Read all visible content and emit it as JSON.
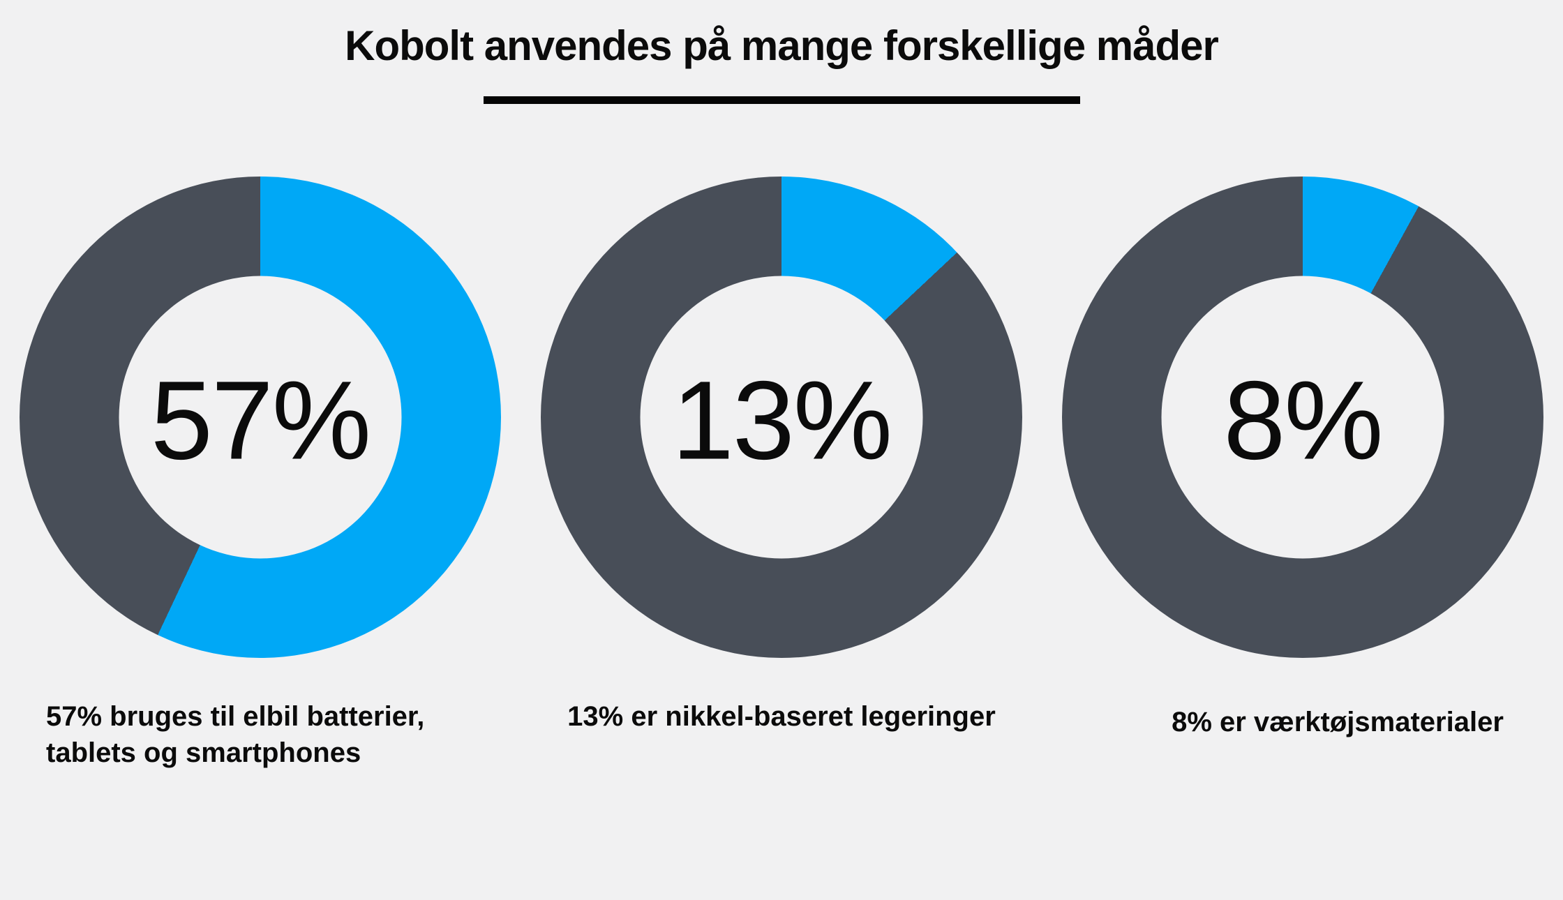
{
  "page": {
    "background": "#f1f1f2",
    "title": "Kobolt anvendes på mange forskellige måder"
  },
  "colors": {
    "highlight_blue": "#00a8f6",
    "slate_gray": "#484e58",
    "text_black": "#0b0b0b",
    "underline_black": "#050505"
  },
  "chart_data": {
    "type": "pie",
    "variant": "donut",
    "title": "Kobolt anvendes på mange forskellige måder",
    "units": "percent",
    "start_angle_deg": 0,
    "direction": "clockwise",
    "legend": "none",
    "slice_colors": {
      "value": "#00a8f6",
      "remainder": "#484e58"
    },
    "series": [
      {
        "value": 57,
        "remainder": 43,
        "center_label": "57%",
        "caption_lines": [
          "57% bruges til elbil batterier,",
          "tablets og smartphones"
        ]
      },
      {
        "value": 13,
        "remainder": 87,
        "center_label": "13%",
        "caption_lines": [
          "13% er nikkel-baseret legeringer"
        ]
      },
      {
        "value": 8,
        "remainder": 92,
        "center_label": "8%",
        "caption_lines": [
          "8% er værktøjsmaterialer"
        ]
      }
    ]
  }
}
